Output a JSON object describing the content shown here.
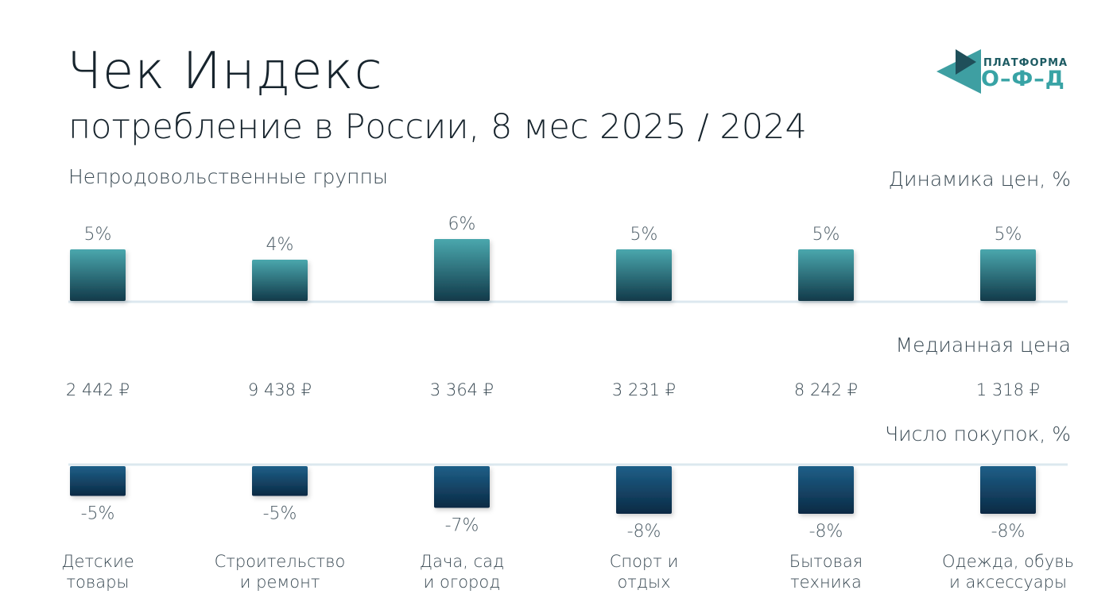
{
  "header": {
    "title": "Чек Индекс",
    "subtitle": "потребление в России, 8 мес 2025 / 2024"
  },
  "logo": {
    "line1": "ПЛАТФОРМА",
    "line2": "О–Ф–Д"
  },
  "labels": {
    "group": "Непродовольственные группы",
    "price_dynamics": "Динамика цен, %",
    "median_price": "Медианная цена",
    "purchases": "Число покупок, %"
  },
  "colors": {
    "top_bar_light": "#4aa7ad",
    "top_bar_dark": "#123a4a",
    "bottom_bar_light": "#1e5f88",
    "bottom_bar_dark": "#0b2a44",
    "axis": "#dce8ef"
  },
  "chart_data": {
    "type": "bar",
    "categories": [
      [
        "Детские",
        "товары"
      ],
      [
        "Строительство",
        "и ремонт"
      ],
      [
        "Дача, сад",
        "и огород"
      ],
      [
        "Спорт и",
        "отдых"
      ],
      [
        "Бытовая",
        "техника"
      ],
      [
        "Одежда, обувь",
        "и аксессуары"
      ]
    ],
    "series": [
      {
        "name": "Динамика цен, %",
        "values": [
          5,
          4,
          6,
          5,
          5,
          5
        ],
        "labels": [
          "5%",
          "4%",
          "6%",
          "5%",
          "5%",
          "5%"
        ]
      },
      {
        "name": "Число покупок, %",
        "values": [
          -5,
          -5,
          -7,
          -8,
          -8,
          -8
        ],
        "labels": [
          "-5%",
          "-5%",
          "-7%",
          "-8%",
          "-8%",
          "-8%"
        ]
      }
    ],
    "median_prices": [
      "2 442 ₽",
      "9 438 ₽",
      "3 364 ₽",
      "3 231 ₽",
      "8 242 ₽",
      "1 318 ₽"
    ]
  }
}
